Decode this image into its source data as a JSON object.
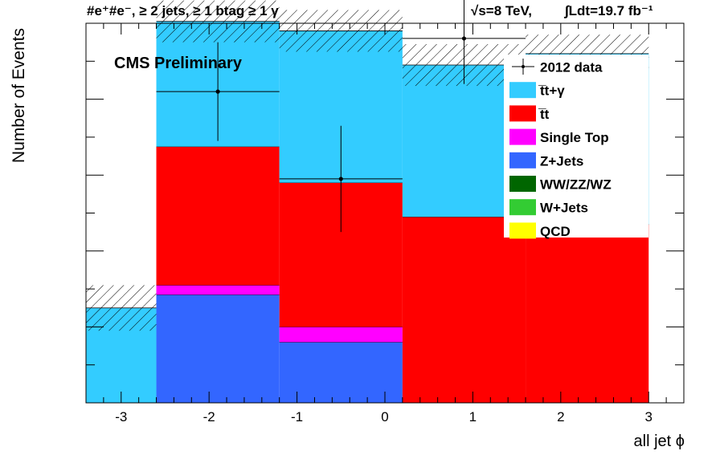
{
  "chart_data": {
    "type": "stacked-histogram",
    "header_left": "#e⁺#e⁻, ≥ 2 jets, ≥ 1 btag ≥ 1 γ",
    "header_energy": "√s=8 TeV,",
    "header_lumi": "∫Ldt=19.7 fb⁻¹",
    "label": "CMS Preliminary",
    "xlabel": "all jet ϕ",
    "ylabel": "Number of Events",
    "xlim": [
      -3.4,
      3.4
    ],
    "ylim": [
      0,
      1.0
    ],
    "y_axis_tick_labels_shown": false,
    "x_ticks": [
      -3,
      -2,
      -1,
      0,
      1,
      2,
      3
    ],
    "bin_edges": [
      -3.4,
      -2.6,
      -1.2,
      0.2,
      1.6,
      3.0,
      3.4
    ],
    "series": [
      {
        "name": "QCD",
        "color": "#ffff00",
        "values": [
          0,
          0,
          0,
          0,
          0,
          0
        ]
      },
      {
        "name": "W+Jets",
        "color": "#33cc33",
        "values": [
          0,
          0,
          0,
          0,
          0,
          0
        ]
      },
      {
        "name": "WW/ZZ/WZ",
        "color": "#006600",
        "values": [
          0,
          0,
          0,
          0,
          0,
          0
        ]
      },
      {
        "name": "Z+Jets",
        "color": "#3366ff",
        "values": [
          0,
          0.285,
          0.16,
          0,
          0,
          0
        ]
      },
      {
        "name": "Single Top",
        "color": "#ff00ff",
        "values": [
          0,
          0.025,
          0.04,
          0,
          0,
          0
        ]
      },
      {
        "name": "t̅t",
        "color": "#ff0000",
        "values": [
          0,
          0.365,
          0.38,
          0.49,
          0.47,
          0
        ]
      },
      {
        "name": "t̅t+γ",
        "color": "#33ccff",
        "values": [
          0.25,
          0.33,
          0.4,
          0.4,
          0.45,
          0
        ]
      }
    ],
    "mc_uncertainty": [
      0.12,
      0.11,
      0.11,
      0.11,
      0.1,
      0
    ],
    "data": {
      "name": "2012 data",
      "x": [
        -1.9,
        -0.5,
        0.9
      ],
      "y": [
        0.82,
        0.59,
        0.96
      ],
      "xerr": 0.7,
      "yerr": [
        0.13,
        0.14,
        0.12
      ]
    }
  }
}
